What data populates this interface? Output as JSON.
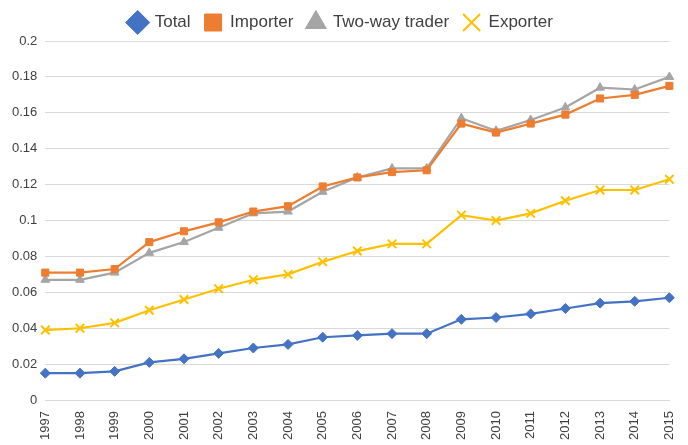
{
  "chart_data": {
    "type": "line",
    "categories": [
      "1997",
      "1998",
      "1999",
      "2000",
      "2001",
      "2002",
      "2003",
      "2004",
      "2005",
      "2006",
      "2007",
      "2008",
      "2009",
      "2010",
      "2011",
      "2012",
      "2013",
      "2014",
      "2015"
    ],
    "series": [
      {
        "name": "Total",
        "color": "#4472C4",
        "marker": "diamond",
        "values": [
          0.015,
          0.015,
          0.016,
          0.021,
          0.023,
          0.026,
          0.029,
          0.031,
          0.035,
          0.036,
          0.037,
          0.037,
          0.045,
          0.046,
          0.048,
          0.051,
          0.054,
          0.055,
          0.057
        ]
      },
      {
        "name": "Importer",
        "color": "#ED7D31",
        "marker": "square",
        "values": [
          0.071,
          0.071,
          0.073,
          0.088,
          0.094,
          0.099,
          0.105,
          0.108,
          0.119,
          0.124,
          0.127,
          0.128,
          0.154,
          0.149,
          0.154,
          0.159,
          0.168,
          0.17,
          0.175
        ]
      },
      {
        "name": "Two-way trader",
        "color": "#A5A5A5",
        "marker": "triangle",
        "values": [
          0.067,
          0.067,
          0.071,
          0.082,
          0.088,
          0.096,
          0.104,
          0.105,
          0.116,
          0.124,
          0.129,
          0.129,
          0.157,
          0.15,
          0.156,
          0.163,
          0.174,
          0.173,
          0.18
        ]
      },
      {
        "name": "Exporter",
        "color": "#FFC000",
        "marker": "x",
        "values": [
          0.039,
          0.04,
          0.043,
          0.05,
          0.056,
          0.062,
          0.067,
          0.07,
          0.077,
          0.083,
          0.087,
          0.087,
          0.103,
          0.1,
          0.104,
          0.111,
          0.117,
          0.117,
          0.123
        ]
      }
    ],
    "ylim": [
      0,
      0.2
    ],
    "yticks": [
      0,
      0.02,
      0.04,
      0.06,
      0.08,
      0.1,
      0.12,
      0.14,
      0.16,
      0.18,
      0.2
    ],
    "grid": true,
    "legend": "top"
  }
}
